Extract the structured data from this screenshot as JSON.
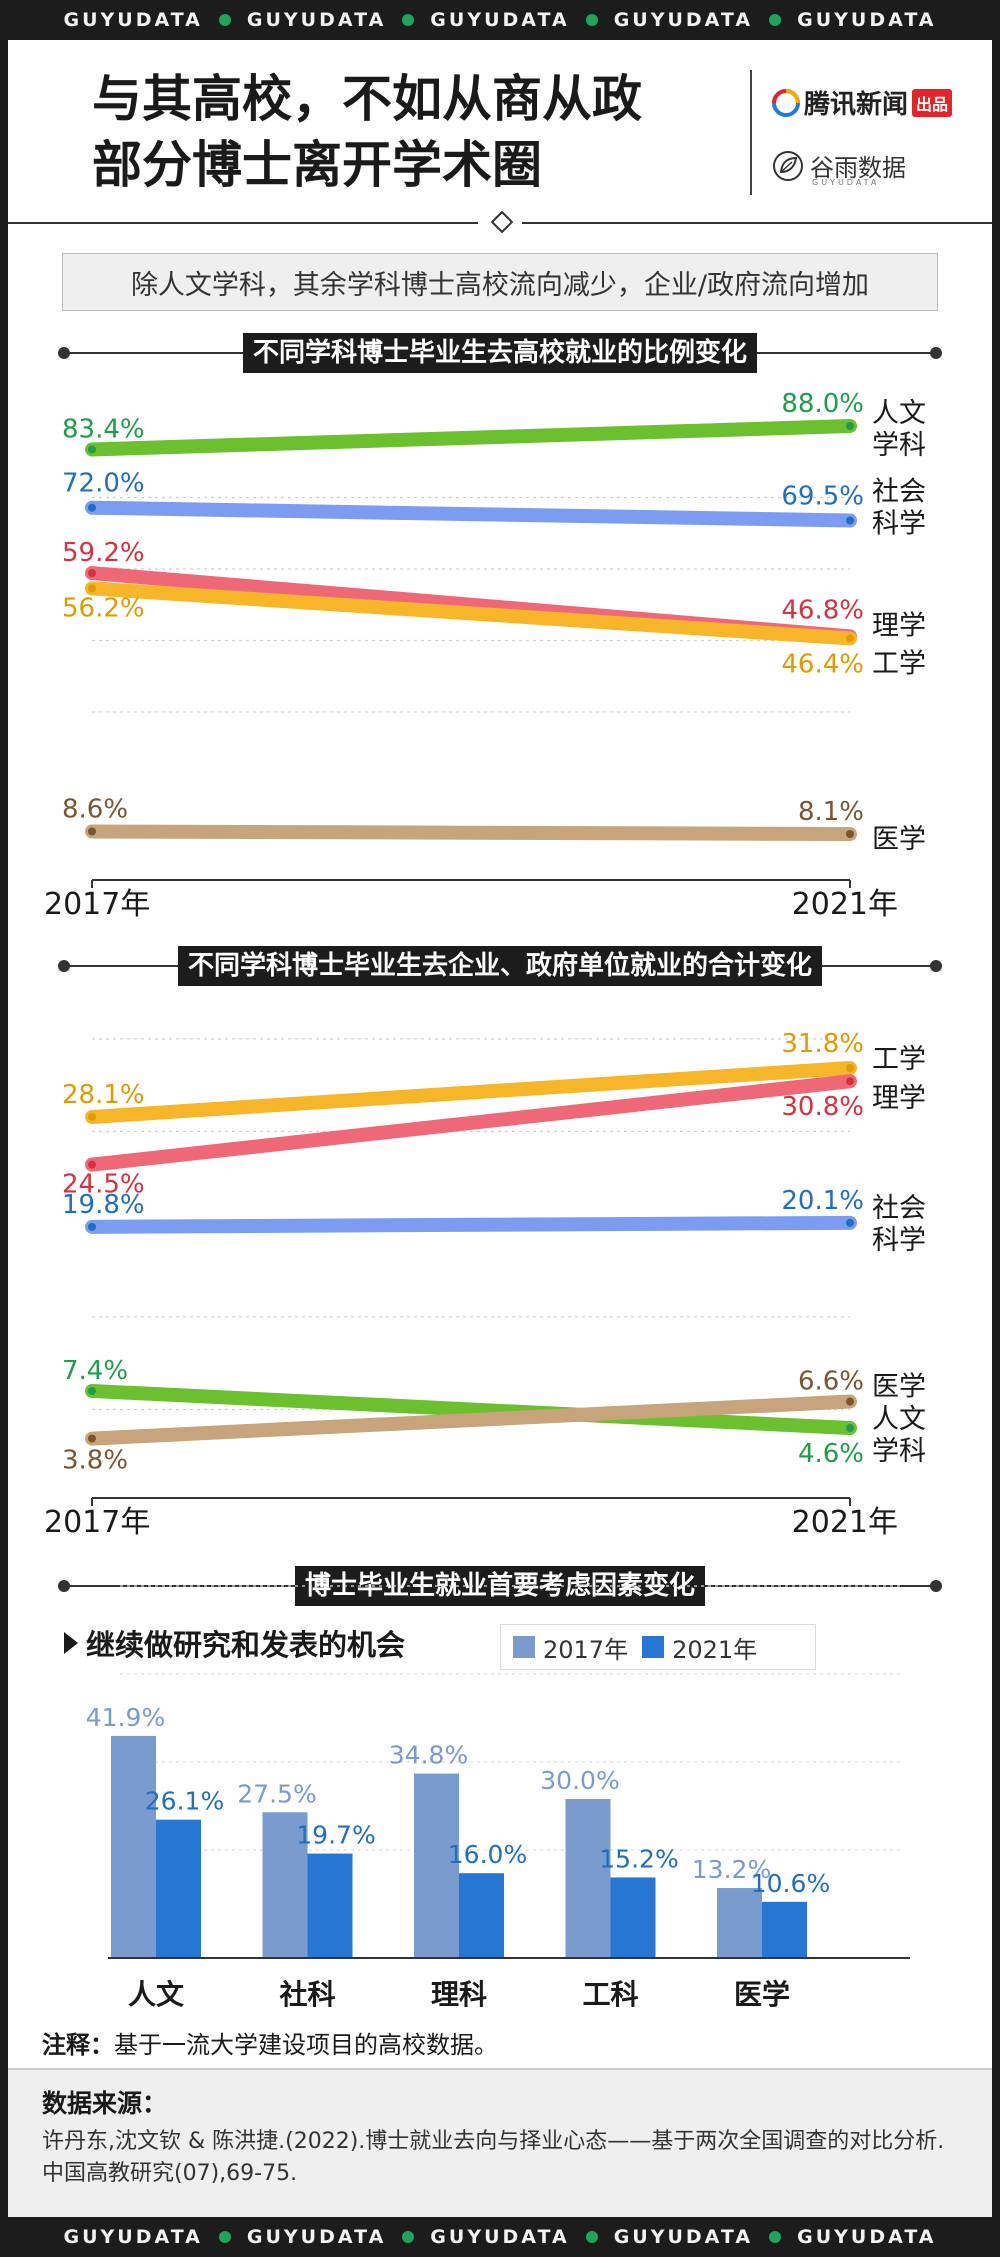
{
  "brand_band": {
    "word": "GUYUDATA"
  },
  "header": {
    "title_line1": "与其高校，不如从商从政",
    "title_line2": "部分博士离开学术圈",
    "logo_tencent": "腾讯新闻",
    "logo_tencent_badge": "出品",
    "logo_guyu": "谷雨数据",
    "logo_guyu_sub": "GUYUDATA"
  },
  "subtitle": "除人文学科，其余学科博士高校流向减少，企业/政府流向增加",
  "colors": {
    "humanities": "#6cbf2f",
    "social": "#7b9cf0",
    "science": "#ef6877",
    "engineering": "#f7b62a",
    "medicine": "#c7a47b",
    "bar2017": "#7a9bce",
    "bar2021": "#2676d4"
  },
  "chart_data": [
    {
      "type": "line",
      "title": "不同学科博士毕业生去高校就业的比例变化",
      "x": [
        "2017年",
        "2021年"
      ],
      "series": [
        {
          "name": "人文学科",
          "name_lines": [
            "人文",
            "学科"
          ],
          "values": [
            83.4,
            88.0
          ],
          "labels": [
            "83.4%",
            "88.0%"
          ],
          "color": "#6cbf2f",
          "dot": "#1e9e4a",
          "text": "#1e9e4a"
        },
        {
          "name": "社会科学",
          "name_lines": [
            "社会",
            "科学"
          ],
          "values": [
            72.0,
            69.5
          ],
          "labels": [
            "72.0%",
            "69.5%"
          ],
          "color": "#7b9cf0",
          "dot": "#1f6fc0",
          "text": "#1f6fc0"
        },
        {
          "name": "理学",
          "name_lines": [
            "理学"
          ],
          "values": [
            59.2,
            46.8
          ],
          "labels": [
            "59.2%",
            "46.8%"
          ],
          "color": "#ef6877",
          "dot": "#d8303f",
          "text": "#d8303f"
        },
        {
          "name": "工学",
          "name_lines": [
            "工学"
          ],
          "values": [
            56.2,
            46.4
          ],
          "labels": [
            "56.2%",
            "46.4%"
          ],
          "color": "#f7b62a",
          "dot": "#e09b00",
          "text": "#e09b00"
        },
        {
          "name": "医学",
          "name_lines": [
            "医学"
          ],
          "values": [
            8.6,
            8.1
          ],
          "labels": [
            "8.6%",
            "8.1%"
          ],
          "color": "#c7a47b",
          "dot": "#7a5530",
          "text": "#7a5530"
        }
      ]
    },
    {
      "type": "line",
      "title": "不同学科博士毕业生去企业、政府单位就业的合计变化",
      "x": [
        "2017年",
        "2021年"
      ],
      "series": [
        {
          "name": "工学",
          "name_lines": [
            "工学"
          ],
          "values": [
            28.1,
            31.8
          ],
          "labels": [
            "28.1%",
            "31.8%"
          ],
          "color": "#f7b62a",
          "dot": "#e09b00",
          "text": "#e09b00"
        },
        {
          "name": "理学",
          "name_lines": [
            "理学"
          ],
          "values": [
            24.5,
            30.8
          ],
          "labels": [
            "24.5%",
            "30.8%"
          ],
          "color": "#ef6877",
          "dot": "#d8303f",
          "text": "#d8303f"
        },
        {
          "name": "社会科学",
          "name_lines": [
            "社会",
            "科学"
          ],
          "values": [
            19.8,
            20.1
          ],
          "labels": [
            "19.8%",
            "20.1%"
          ],
          "color": "#7b9cf0",
          "dot": "#1f6fc0",
          "text": "#1f6fc0"
        },
        {
          "name": "人文学科",
          "name_lines": [
            "人文",
            "学科"
          ],
          "values": [
            7.4,
            4.6
          ],
          "labels": [
            "7.4%",
            "4.6%"
          ],
          "color": "#6cbf2f",
          "dot": "#1e9e4a",
          "text": "#1e9e4a"
        },
        {
          "name": "医学",
          "name_lines": [
            "医学"
          ],
          "values": [
            3.8,
            6.6
          ],
          "labels": [
            "3.8%",
            "6.6%"
          ],
          "color": "#c7a47b",
          "dot": "#7a5530",
          "text": "#7a5530"
        }
      ]
    },
    {
      "type": "bar",
      "title": "博士毕业生就业首要考虑因素变化",
      "subtitle": "继续做研究和发表的机会",
      "categories": [
        "人文",
        "社科",
        "理科",
        "工科",
        "医学"
      ],
      "series": [
        {
          "name": "2017年",
          "values": [
            41.9,
            27.5,
            34.8,
            30.0,
            13.2
          ],
          "labels": [
            "41.9%",
            "27.5%",
            "34.8%",
            "30.0%",
            "13.2%"
          ],
          "color": "#7a9bce",
          "text": "#7a9bce"
        },
        {
          "name": "2021年",
          "values": [
            26.1,
            19.7,
            16.0,
            15.2,
            10.6
          ],
          "labels": [
            "26.1%",
            "19.7%",
            "16.0%",
            "15.2%",
            "10.6%"
          ],
          "color": "#2676d4",
          "text": "#1f6fc0"
        }
      ]
    }
  ],
  "note_label": "注释：",
  "note_text": "基于一流大学建设项目的高校数据。",
  "source_title": "数据来源：",
  "source_text": "许丹东,沈文钦 & 陈洪捷.(2022).博士就业去向与择业心态——基于两次全国调查的对比分析. 中国高教研究(07),69-75."
}
